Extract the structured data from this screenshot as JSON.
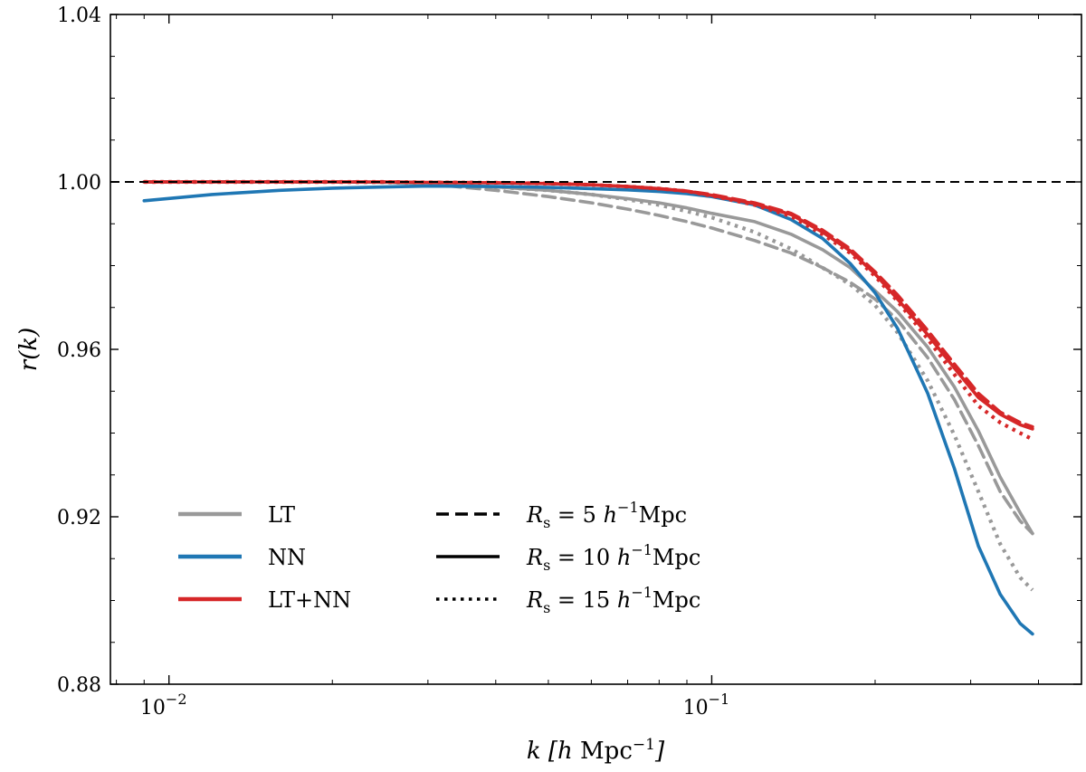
{
  "chart_data": {
    "type": "line",
    "title": "",
    "xlabel": "k [h Mpc⁻¹]",
    "ylabel": "r(k)",
    "xscale": "log",
    "xlim": [
      0.0078,
      0.48
    ],
    "ylim": [
      0.88,
      1.04
    ],
    "xticks": [
      {
        "value": 0.01,
        "base": "10",
        "exp": "−2"
      },
      {
        "value": 0.1,
        "base": "10",
        "exp": "−1"
      }
    ],
    "yticks": [
      {
        "value": 0.88,
        "label": "0.88"
      },
      {
        "value": 0.92,
        "label": "0.92"
      },
      {
        "value": 0.96,
        "label": "0.96"
      },
      {
        "value": 1.0,
        "label": "1.00"
      },
      {
        "value": 1.04,
        "label": "1.04"
      }
    ],
    "reference_line": {
      "y": 1.0,
      "style": "dashed",
      "color": "#000000"
    },
    "colors": {
      "LT": "#999999",
      "NN": "#1f77b4",
      "LT+NN": "#d62728"
    },
    "x": [
      0.009,
      0.012,
      0.016,
      0.02,
      0.025,
      0.03,
      0.04,
      0.05,
      0.06,
      0.07,
      0.08,
      0.09,
      0.1,
      0.12,
      0.14,
      0.16,
      0.18,
      0.2,
      0.22,
      0.25,
      0.28,
      0.31,
      0.34,
      0.37,
      0.39
    ],
    "series": [
      {
        "name": "LT",
        "smoothing": "Rs = 5",
        "color": "#999999",
        "dash": "dashed",
        "values": [
          1.0,
          1.0,
          1.0,
          1.0,
          0.9999,
          0.9995,
          0.998,
          0.9965,
          0.995,
          0.9935,
          0.992,
          0.9905,
          0.989,
          0.986,
          0.983,
          0.9795,
          0.976,
          0.972,
          0.967,
          0.958,
          0.948,
          0.937,
          0.926,
          0.919,
          0.916
        ]
      },
      {
        "name": "LT",
        "smoothing": "Rs = 10",
        "color": "#999999",
        "dash": "solid",
        "values": [
          1.0,
          1.0,
          1.0,
          1.0,
          0.9999,
          0.9996,
          0.9988,
          0.998,
          0.997,
          0.996,
          0.995,
          0.9938,
          0.9925,
          0.9905,
          0.9875,
          0.9838,
          0.9795,
          0.974,
          0.969,
          0.9605,
          0.951,
          0.9405,
          0.9295,
          0.921,
          0.916
        ]
      },
      {
        "name": "LT",
        "smoothing": "Rs = 15",
        "color": "#999999",
        "dash": "dotted",
        "values": [
          1.0,
          1.0,
          1.0,
          1.0,
          0.9999,
          0.9996,
          0.9988,
          0.998,
          0.997,
          0.9958,
          0.9945,
          0.993,
          0.9915,
          0.988,
          0.984,
          0.9795,
          0.9755,
          0.9705,
          0.964,
          0.9525,
          0.9395,
          0.926,
          0.9135,
          0.9055,
          0.9025
        ]
      },
      {
        "name": "NN",
        "smoothing": "Rs = 10",
        "color": "#1f77b4",
        "dash": "solid",
        "values": [
          0.9955,
          0.997,
          0.998,
          0.9985,
          0.9988,
          0.999,
          0.9989,
          0.9987,
          0.9984,
          0.9981,
          0.9977,
          0.9972,
          0.9965,
          0.9945,
          0.991,
          0.9865,
          0.9805,
          0.9735,
          0.965,
          0.9495,
          0.9315,
          0.913,
          0.9015,
          0.8945,
          0.892
        ]
      },
      {
        "name": "LT+NN",
        "smoothing": "Rs = 5",
        "color": "#d62728",
        "dash": "dashed",
        "values": [
          1.0,
          1.0,
          1.0,
          1.0,
          1.0,
          0.9999,
          0.9998,
          0.9996,
          0.9993,
          0.9989,
          0.9984,
          0.9978,
          0.997,
          0.995,
          0.9925,
          0.9885,
          0.984,
          0.9785,
          0.973,
          0.9645,
          0.9565,
          0.9495,
          0.945,
          0.9425,
          0.9415
        ]
      },
      {
        "name": "LT+NN",
        "smoothing": "Rs = 10",
        "color": "#d62728",
        "dash": "solid",
        "values": [
          1.0,
          1.0,
          1.0,
          1.0,
          1.0,
          0.9999,
          0.9998,
          0.9996,
          0.9993,
          0.9989,
          0.9984,
          0.9978,
          0.9968,
          0.9948,
          0.9922,
          0.988,
          0.9835,
          0.978,
          0.972,
          0.9635,
          0.9555,
          0.9485,
          0.9445,
          0.942,
          0.941
        ]
      },
      {
        "name": "LT+NN",
        "smoothing": "Rs = 15",
        "color": "#d62728",
        "dash": "dotted",
        "values": [
          1.0,
          1.0,
          1.0,
          1.0,
          1.0,
          0.9999,
          0.9998,
          0.9996,
          0.9993,
          0.9989,
          0.9984,
          0.9978,
          0.9967,
          0.9945,
          0.9918,
          0.9875,
          0.983,
          0.9775,
          0.9715,
          0.9625,
          0.954,
          0.9465,
          0.9425,
          0.94,
          0.9385
        ]
      }
    ],
    "legend": {
      "placement": "lower-left",
      "models": [
        {
          "label": "LT",
          "color": "#999999"
        },
        {
          "label": "NN",
          "color": "#1f77b4"
        },
        {
          "label": "LT+NN",
          "color": "#d62728"
        }
      ],
      "smoothing": [
        {
          "prefix": "R",
          "sub": "s",
          "value": "5",
          "unit_h": "h",
          "unit_exp": "−1",
          "unit": "Mpc",
          "dash": "dashed"
        },
        {
          "prefix": "R",
          "sub": "s",
          "value": "10",
          "unit_h": "h",
          "unit_exp": "−1",
          "unit": "Mpc",
          "dash": "solid"
        },
        {
          "prefix": "R",
          "sub": "s",
          "value": "15",
          "unit_h": "h",
          "unit_exp": "−1",
          "unit": "Mpc",
          "dash": "dotted"
        }
      ]
    }
  }
}
